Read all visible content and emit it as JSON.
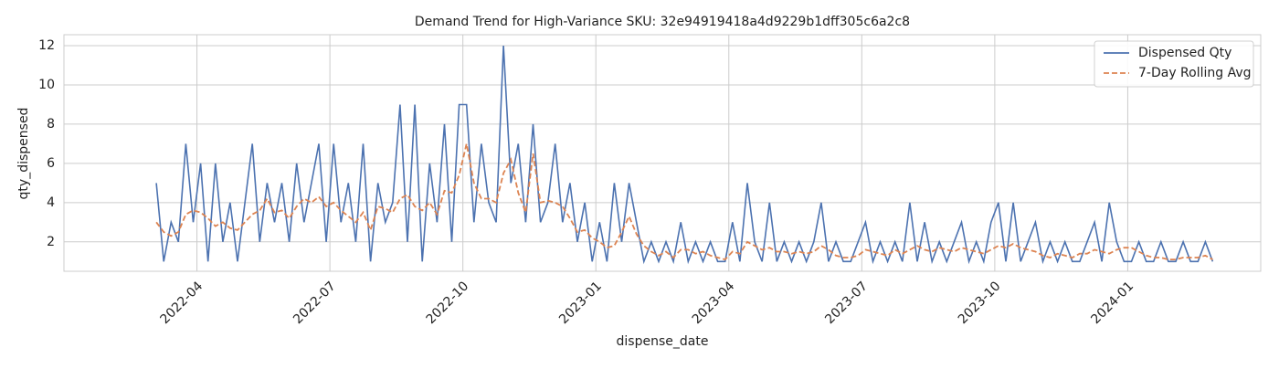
{
  "chart_data": {
    "type": "line",
    "title": "Demand Trend for High-Variance SKU: 32e94919418a4d9229b1dff305c6a2c8",
    "x_label": "dispense_date",
    "y_label": "qty_dispensed",
    "x": [
      "2022-03",
      "2022-03",
      "2022-03",
      "2022-03",
      "2022-03",
      "2022-03",
      "2022-04",
      "2022-04",
      "2022-04",
      "2022-04",
      "2022-04",
      "2022-04",
      "2022-05",
      "2022-05",
      "2022-05",
      "2022-05",
      "2022-05",
      "2022-05",
      "2022-06",
      "2022-06",
      "2022-06",
      "2022-06",
      "2022-06",
      "2022-06",
      "2022-07",
      "2022-07",
      "2022-07",
      "2022-07",
      "2022-07",
      "2022-07",
      "2022-08",
      "2022-08",
      "2022-08",
      "2022-08",
      "2022-08",
      "2022-08",
      "2022-09",
      "2022-09",
      "2022-09",
      "2022-09",
      "2022-09",
      "2022-09",
      "2022-10",
      "2022-10",
      "2022-10",
      "2022-10",
      "2022-10",
      "2022-10",
      "2022-11",
      "2022-11",
      "2022-11",
      "2022-11",
      "2022-11",
      "2022-11",
      "2022-12",
      "2022-12",
      "2022-12",
      "2022-12",
      "2022-12",
      "2022-12",
      "2023-01",
      "2023-01",
      "2023-01",
      "2023-01",
      "2023-01",
      "2023-01",
      "2023-02",
      "2023-02",
      "2023-02",
      "2023-02",
      "2023-02",
      "2023-02",
      "2023-03",
      "2023-03",
      "2023-03",
      "2023-03",
      "2023-03",
      "2023-03",
      "2023-04",
      "2023-04",
      "2023-04",
      "2023-04",
      "2023-04",
      "2023-04",
      "2023-05",
      "2023-05",
      "2023-05",
      "2023-05",
      "2023-05",
      "2023-05",
      "2023-06",
      "2023-06",
      "2023-06",
      "2023-06",
      "2023-06",
      "2023-06",
      "2023-07",
      "2023-07",
      "2023-07",
      "2023-07",
      "2023-07",
      "2023-07",
      "2023-08",
      "2023-08",
      "2023-08",
      "2023-08",
      "2023-08",
      "2023-08",
      "2023-09",
      "2023-09",
      "2023-09",
      "2023-09",
      "2023-09",
      "2023-09",
      "2023-10",
      "2023-10",
      "2023-10",
      "2023-10",
      "2023-10",
      "2023-10",
      "2023-11",
      "2023-11",
      "2023-11",
      "2023-11",
      "2023-11",
      "2023-11",
      "2023-12",
      "2023-12",
      "2023-12",
      "2023-12",
      "2023-12",
      "2023-12",
      "2024-01",
      "2024-01",
      "2024-01",
      "2024-01",
      "2024-01",
      "2024-01",
      "2024-02",
      "2024-02",
      "2024-02",
      "2024-02",
      "2024-02",
      "2024-02"
    ],
    "series": [
      {
        "name": "Dispensed Qty",
        "color": "#4c72b0",
        "dash": false,
        "values": [
          5,
          1,
          3,
          2,
          7,
          3,
          6,
          1,
          6,
          2,
          4,
          1,
          4,
          7,
          2,
          5,
          3,
          5,
          2,
          6,
          3,
          5,
          7,
          2,
          7,
          3,
          5,
          2,
          7,
          1,
          5,
          3,
          4,
          9,
          2,
          9,
          1,
          6,
          3,
          8,
          2,
          9,
          9,
          3,
          7,
          4,
          3,
          12,
          5,
          7,
          3,
          8,
          3,
          4,
          7,
          3,
          5,
          2,
          4,
          1,
          3,
          1,
          5,
          2,
          5,
          3,
          1,
          2,
          1,
          2,
          1,
          3,
          1,
          2,
          1,
          2,
          1,
          1,
          3,
          1,
          5,
          2,
          1,
          4,
          1,
          2,
          1,
          2,
          1,
          2,
          4,
          1,
          2,
          1,
          1,
          2,
          3,
          1,
          2,
          1,
          2,
          1,
          4,
          1,
          3,
          1,
          2,
          1,
          2,
          3,
          1,
          2,
          1,
          3,
          4,
          1,
          4,
          1,
          2,
          3,
          1,
          2,
          1,
          2,
          1,
          1,
          2,
          3,
          1,
          4,
          2,
          1,
          1,
          2,
          1,
          1,
          2,
          1,
          1,
          2,
          1,
          1,
          2,
          1
        ]
      },
      {
        "name": "7-Day Rolling Avg",
        "color": "#dd8452",
        "dash": true,
        "values": [
          3,
          2.5,
          2.3,
          2.5,
          3.4,
          3.6,
          3.5,
          3.2,
          2.8,
          3,
          2.7,
          2.6,
          3,
          3.4,
          3.6,
          4.2,
          3.5,
          3.6,
          3.2,
          3.8,
          4.2,
          4,
          4.3,
          3.8,
          4,
          3.6,
          3.3,
          3,
          3.5,
          2.6,
          3.8,
          3.7,
          3.5,
          4.2,
          4.4,
          3.8,
          3.6,
          4,
          3.4,
          4.6,
          4.5,
          5.4,
          7,
          5,
          4.2,
          4.2,
          4,
          5.5,
          6.2,
          4.5,
          3.5,
          6.5,
          4,
          4.1,
          4,
          3.8,
          3.2,
          2.5,
          2.6,
          2.2,
          2,
          1.7,
          1.8,
          2.5,
          3.3,
          2.4,
          1.8,
          1.5,
          1.3,
          1.5,
          1.2,
          1.6,
          1.6,
          1.4,
          1.5,
          1.3,
          1.2,
          1.1,
          1.5,
          1.4,
          2,
          1.8,
          1.6,
          1.7,
          1.5,
          1.5,
          1.4,
          1.5,
          1.4,
          1.5,
          1.8,
          1.6,
          1.3,
          1.2,
          1.2,
          1.3,
          1.6,
          1.5,
          1.4,
          1.3,
          1.6,
          1.4,
          1.6,
          1.8,
          1.6,
          1.5,
          1.7,
          1.6,
          1.5,
          1.7,
          1.6,
          1.5,
          1.4,
          1.6,
          1.8,
          1.7,
          1.9,
          1.7,
          1.6,
          1.5,
          1.3,
          1.2,
          1.4,
          1.3,
          1.2,
          1.4,
          1.4,
          1.6,
          1.5,
          1.4,
          1.6,
          1.7,
          1.7,
          1.5,
          1.3,
          1.2,
          1.2,
          1.1,
          1.1,
          1.2,
          1.2,
          1.2,
          1.3,
          1.1
        ]
      }
    ],
    "xlim": [
      "2022-01",
      "2024-04"
    ],
    "xticks": [
      "2022-04",
      "2022-07",
      "2022-10",
      "2023-01",
      "2023-04",
      "2023-07",
      "2023-10",
      "2024-01"
    ],
    "ylim": [
      0.5,
      12.56
    ],
    "yticks": [
      2,
      4,
      6,
      8,
      10,
      12
    ],
    "grid": true,
    "legend": "upper right"
  }
}
